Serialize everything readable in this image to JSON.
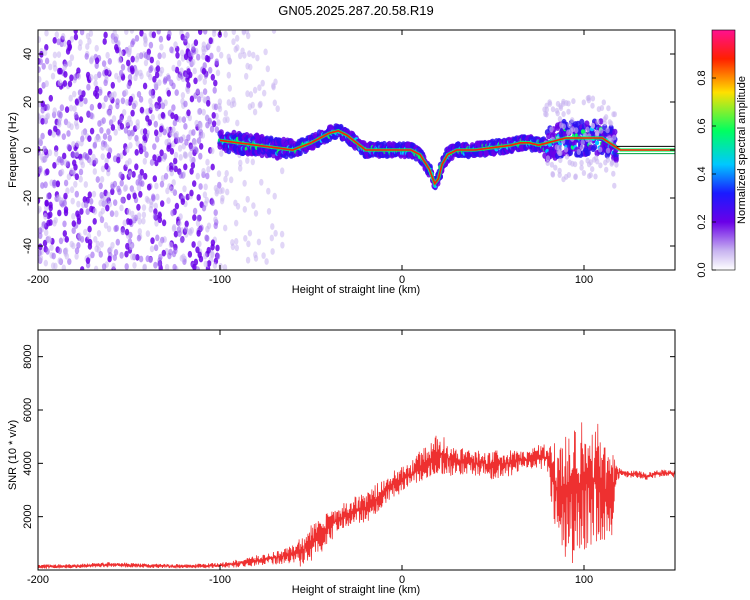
{
  "chart_data": [
    {
      "type": "heatmap",
      "title": "GN05.2025.287.20.58.R19",
      "xlabel": "Height of straight line (km)",
      "ylabel": "Frequency (Hz)",
      "xlim": [
        -200,
        150
      ],
      "ylim": [
        -50,
        50
      ],
      "x_ticks": [
        -200,
        -100,
        0,
        100
      ],
      "x_tick_labels": [
        "-200",
        "-100",
        "0",
        "100"
      ],
      "y_ticks": [
        -40,
        -20,
        0,
        20,
        40
      ],
      "y_tick_labels": [
        "-40",
        "-20",
        "0",
        "20",
        "40"
      ],
      "colorbar": {
        "label": "Normalized spectral amplitude",
        "range": [
          0,
          1
        ],
        "ticks": [
          0.0,
          0.2,
          0.4,
          0.6,
          0.8
        ],
        "tick_labels": [
          "0.0",
          "0.2",
          "0.4",
          "0.6",
          "0.8"
        ],
        "colormap": [
          "#ffffff",
          "#c8b4f0",
          "#6a00e8",
          "#1a1aff",
          "#00c8ff",
          "#00ff60",
          "#ffe000",
          "#ff2000",
          "#ff1090"
        ]
      },
      "ridge": {
        "name": "frequency ridge",
        "x": [
          -100,
          -90,
          -80,
          -70,
          -60,
          -50,
          -40,
          -35,
          -30,
          -25,
          -20,
          -10,
          0,
          5,
          10,
          15,
          18,
          20,
          22,
          25,
          30,
          40,
          50,
          60,
          65,
          70,
          75,
          80,
          85,
          90,
          100,
          110,
          118,
          120,
          130,
          150
        ],
        "freq": [
          4,
          3,
          2,
          1,
          0,
          3,
          7,
          8,
          6,
          3,
          0,
          0,
          0,
          0,
          -2,
          -8,
          -14,
          -12,
          -6,
          -2,
          0,
          0,
          1,
          2,
          3,
          3,
          2,
          3,
          4,
          5,
          5,
          5,
          1,
          0,
          0,
          0
        ]
      }
    },
    {
      "type": "line",
      "xlabel": "Height of straight line (km)",
      "ylabel": "SNR (10 * v/v)",
      "xlim": [
        -200,
        150
      ],
      "ylim": [
        0,
        9000
      ],
      "x_ticks": [
        -200,
        -100,
        0,
        100
      ],
      "x_tick_labels": [
        "-200",
        "-100",
        "0",
        "100"
      ],
      "y_ticks": [
        2000,
        4000,
        6000,
        8000
      ],
      "y_tick_labels": [
        "2000",
        "4000",
        "6000",
        "8000"
      ],
      "series": [
        {
          "name": "SNR",
          "color": "#ee3030",
          "x": [
            -200,
            -180,
            -160,
            -140,
            -120,
            -100,
            -90,
            -80,
            -70,
            -60,
            -55,
            -50,
            -45,
            -40,
            -35,
            -30,
            -25,
            -20,
            -15,
            -10,
            -5,
            0,
            5,
            10,
            15,
            20,
            25,
            30,
            35,
            40,
            45,
            50,
            55,
            60,
            65,
            70,
            75,
            80,
            85,
            90,
            95,
            100,
            105,
            110,
            115,
            118,
            120,
            125,
            130,
            135,
            140,
            145,
            150
          ],
          "y": [
            120,
            150,
            200,
            160,
            140,
            170,
            250,
            350,
            450,
            600,
            700,
            1000,
            1300,
            1600,
            1900,
            2100,
            2300,
            2300,
            2600,
            2900,
            3200,
            3400,
            3600,
            3900,
            4100,
            4400,
            4200,
            4000,
            4100,
            4000,
            4000,
            3900,
            4000,
            4000,
            4100,
            4100,
            4300,
            4200,
            3000,
            2900,
            3000,
            3200,
            3400,
            3100,
            2800,
            3600,
            3650,
            3600,
            3600,
            3500,
            3600,
            3650,
            3600
          ],
          "spread": [
            80,
            80,
            100,
            80,
            80,
            100,
            150,
            200,
            250,
            350,
            600,
            700,
            700,
            600,
            500,
            500,
            500,
            600,
            600,
            500,
            500,
            500,
            500,
            600,
            600,
            800,
            700,
            500,
            500,
            500,
            500,
            600,
            500,
            500,
            400,
            400,
            500,
            500,
            2000,
            2600,
            2800,
            2500,
            2600,
            2000,
            1800,
            300,
            150,
            150,
            150,
            150,
            150,
            150,
            150
          ]
        }
      ]
    }
  ]
}
